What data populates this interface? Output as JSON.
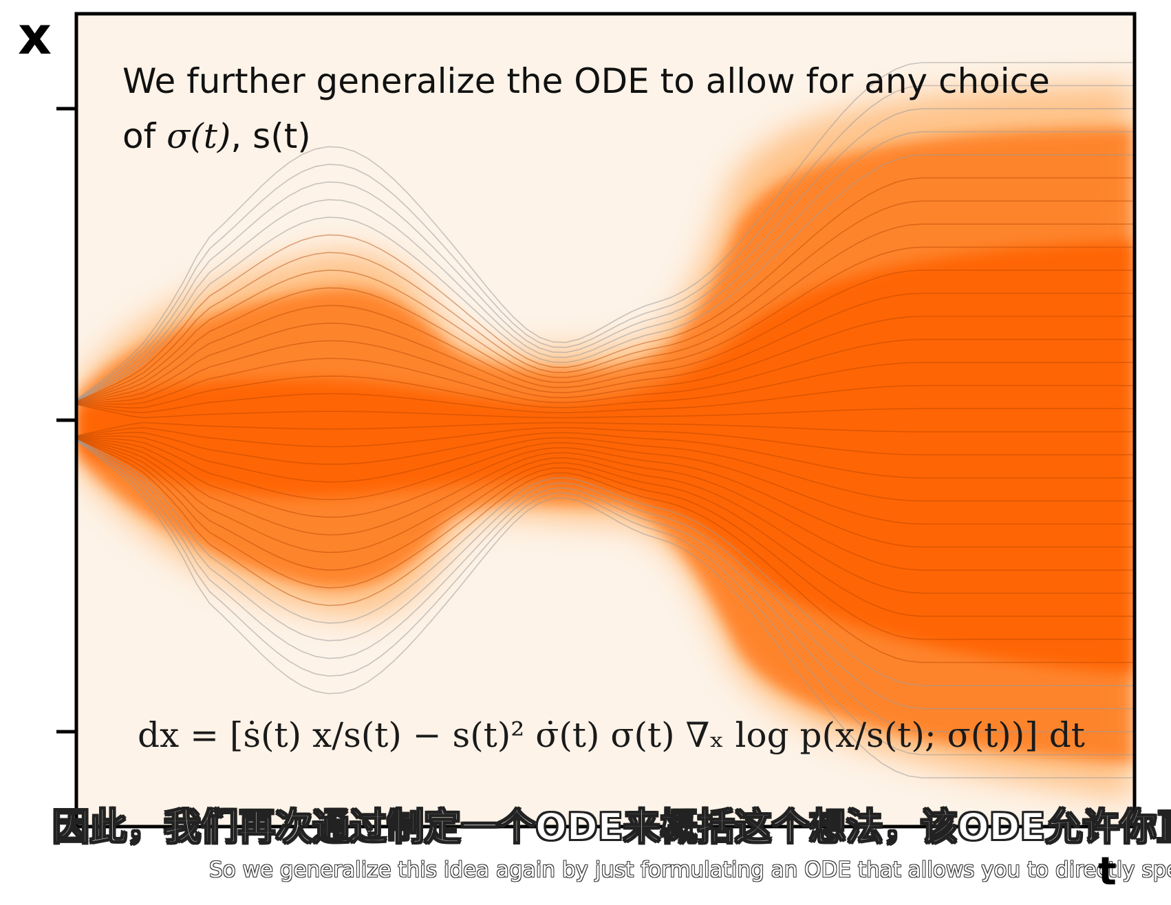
{
  "axes": {
    "x_axis_letter": "x",
    "t_axis_letter": "t"
  },
  "slide": {
    "title_line1": "We further generalize the ODE to allow for any choice",
    "title_line2_prefix": "of ",
    "title_sigma": "σ(t)",
    "title_sep": ", ",
    "title_s": "s(t)"
  },
  "equation": {
    "text": "dx = [ṡ(t) x/s(t) − s(t)² σ̇(t) σ(t) ∇ₓ log p(x/s(t); σ(t))] dt"
  },
  "subtitles": {
    "zh": "因此，我们再次通过制定一个ODE来概括这个想法，该ODE允许你直接",
    "en": "So we generalize this idea again by just formulating an ODE that allows you to directly speci"
  },
  "colors": {
    "background_light": "#fdf3e8",
    "density_orange": "#ff6a00",
    "trajectory_gray": "#9a9a9a",
    "frame": "#000000"
  }
}
